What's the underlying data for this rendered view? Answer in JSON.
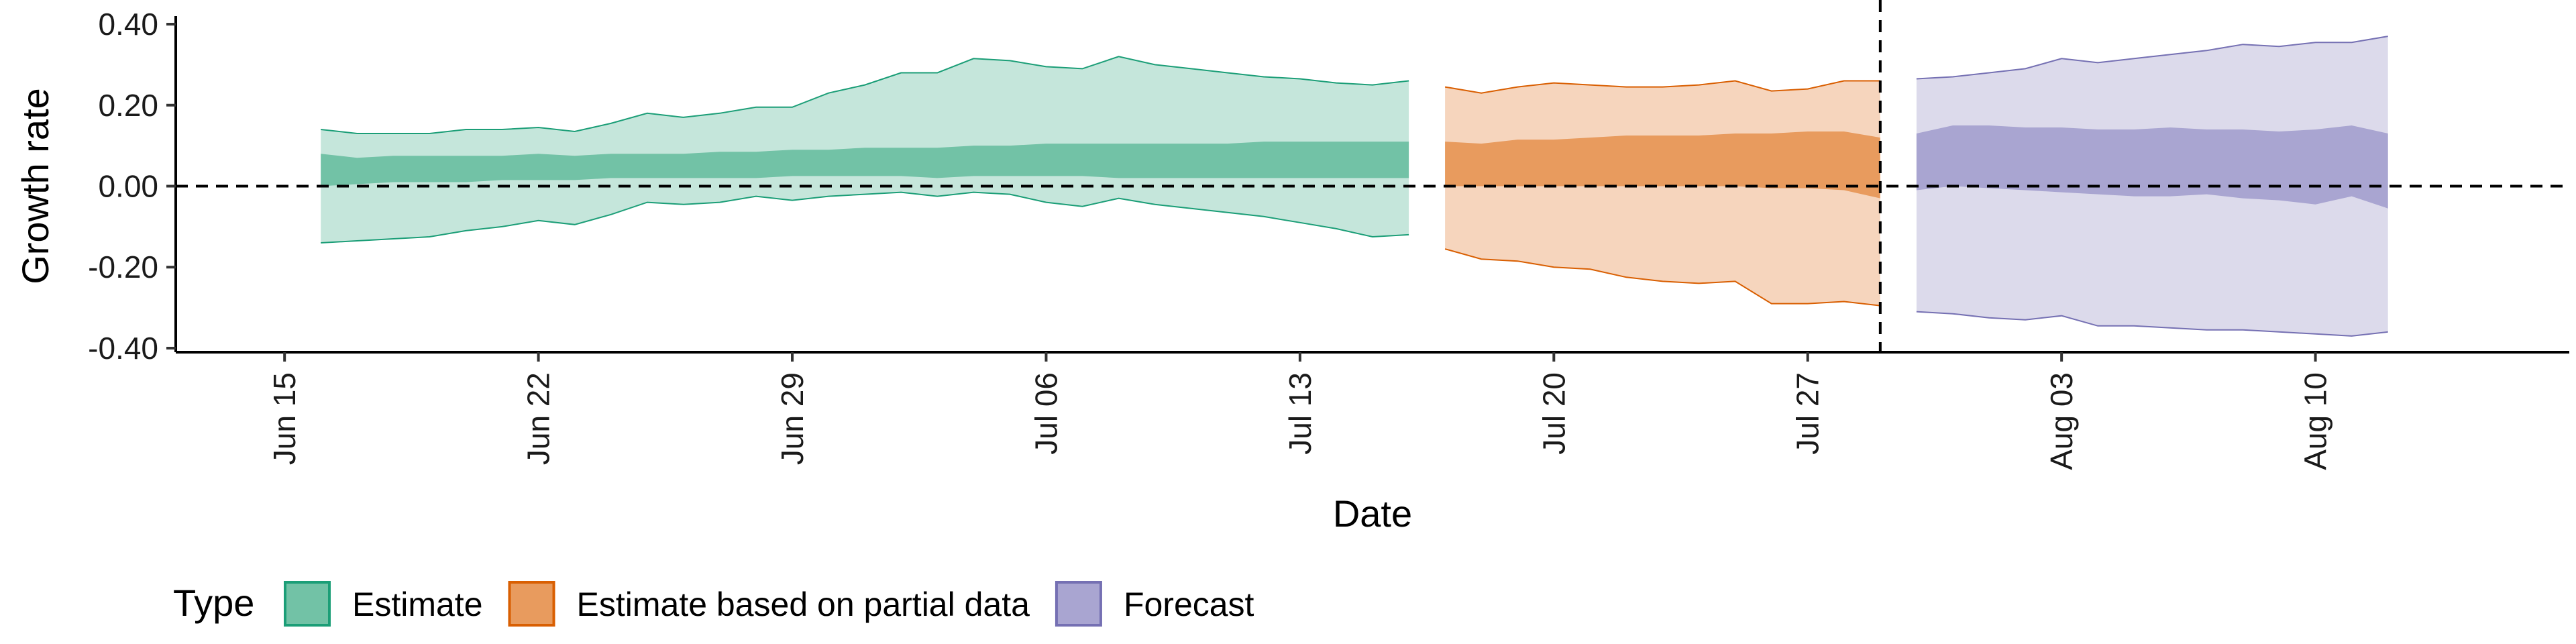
{
  "chart_data": {
    "type": "area",
    "title": "",
    "xlabel": "Date",
    "ylabel": "Growth rate",
    "x_axis": {
      "type": "date",
      "range": [
        "2020-06-12",
        "2020-08-17"
      ],
      "ticks": [
        {
          "date": "2020-06-15",
          "label": "Jun 15"
        },
        {
          "date": "2020-06-22",
          "label": "Jun 22"
        },
        {
          "date": "2020-06-29",
          "label": "Jun 29"
        },
        {
          "date": "2020-07-06",
          "label": "Jul 06"
        },
        {
          "date": "2020-07-13",
          "label": "Jul 13"
        },
        {
          "date": "2020-07-20",
          "label": "Jul 20"
        },
        {
          "date": "2020-07-27",
          "label": "Jul 27"
        },
        {
          "date": "2020-08-03",
          "label": "Aug 03"
        },
        {
          "date": "2020-08-10",
          "label": "Aug 10"
        }
      ]
    },
    "y_axis": {
      "range": [
        -0.41,
        0.41
      ],
      "ticks": [
        {
          "value": 0.4,
          "label": "0.40"
        },
        {
          "value": 0.2,
          "label": "0.20"
        },
        {
          "value": 0.0,
          "label": "0.00"
        },
        {
          "value": -0.2,
          "label": "-0.20"
        },
        {
          "value": -0.4,
          "label": "-0.40"
        }
      ]
    },
    "reference_lines": [
      {
        "orientation": "horizontal",
        "value": 0.0,
        "style": "dashed"
      },
      {
        "orientation": "vertical",
        "value": "2020-07-29",
        "style": "dashed"
      }
    ],
    "legend": {
      "title": "Type",
      "position": "bottom",
      "entries": [
        {
          "label": "Estimate",
          "fill": "#72c2a6",
          "stroke": "#1b9e77"
        },
        {
          "label": "Estimate based on partial data",
          "fill": "#e89b5e",
          "stroke": "#d95f02"
        },
        {
          "label": "Forecast",
          "fill": "#a9a5d1",
          "stroke": "#7570b3"
        }
      ]
    },
    "series": [
      {
        "name": "Estimate",
        "outer_fill": "#c5e6db",
        "inner_fill": "#72c2a6",
        "outline": "#1b9e77",
        "dates": [
          "2020-06-16",
          "2020-06-17",
          "2020-06-18",
          "2020-06-19",
          "2020-06-20",
          "2020-06-21",
          "2020-06-22",
          "2020-06-23",
          "2020-06-24",
          "2020-06-25",
          "2020-06-26",
          "2020-06-27",
          "2020-06-28",
          "2020-06-29",
          "2020-06-30",
          "2020-07-01",
          "2020-07-02",
          "2020-07-03",
          "2020-07-04",
          "2020-07-05",
          "2020-07-06",
          "2020-07-07",
          "2020-07-08",
          "2020-07-09",
          "2020-07-10",
          "2020-07-11",
          "2020-07-12",
          "2020-07-13",
          "2020-07-14",
          "2020-07-15",
          "2020-07-16"
        ],
        "outer_upper": [
          0.14,
          0.13,
          0.13,
          0.13,
          0.14,
          0.14,
          0.145,
          0.135,
          0.155,
          0.18,
          0.17,
          0.18,
          0.195,
          0.195,
          0.23,
          0.25,
          0.28,
          0.28,
          0.315,
          0.31,
          0.295,
          0.29,
          0.32,
          0.3,
          0.29,
          0.28,
          0.27,
          0.265,
          0.255,
          0.25,
          0.26
        ],
        "inner_upper": [
          0.08,
          0.07,
          0.075,
          0.075,
          0.075,
          0.075,
          0.08,
          0.075,
          0.08,
          0.08,
          0.08,
          0.085,
          0.085,
          0.09,
          0.09,
          0.095,
          0.095,
          0.095,
          0.1,
          0.1,
          0.105,
          0.105,
          0.105,
          0.105,
          0.105,
          0.105,
          0.11,
          0.11,
          0.11,
          0.11,
          0.11
        ],
        "inner_lower": [
          0.0,
          0.005,
          0.01,
          0.01,
          0.01,
          0.015,
          0.015,
          0.015,
          0.02,
          0.02,
          0.02,
          0.02,
          0.02,
          0.025,
          0.025,
          0.025,
          0.025,
          0.02,
          0.025,
          0.025,
          0.025,
          0.025,
          0.02,
          0.02,
          0.02,
          0.02,
          0.02,
          0.02,
          0.02,
          0.02,
          0.02
        ],
        "outer_lower": [
          -0.14,
          -0.135,
          -0.13,
          -0.125,
          -0.11,
          -0.1,
          -0.085,
          -0.095,
          -0.07,
          -0.04,
          -0.045,
          -0.04,
          -0.025,
          -0.035,
          -0.025,
          -0.02,
          -0.015,
          -0.025,
          -0.015,
          -0.02,
          -0.04,
          -0.05,
          -0.03,
          -0.045,
          -0.055,
          -0.065,
          -0.075,
          -0.09,
          -0.105,
          -0.125,
          -0.12
        ]
      },
      {
        "name": "Estimate based on partial data",
        "outer_fill": "#f6d5bd",
        "inner_fill": "#e89b5e",
        "outline": "#d95f02",
        "dates": [
          "2020-07-17",
          "2020-07-18",
          "2020-07-19",
          "2020-07-20",
          "2020-07-21",
          "2020-07-22",
          "2020-07-23",
          "2020-07-24",
          "2020-07-25",
          "2020-07-26",
          "2020-07-27",
          "2020-07-28",
          "2020-07-29"
        ],
        "outer_upper": [
          0.245,
          0.23,
          0.245,
          0.255,
          0.25,
          0.245,
          0.245,
          0.25,
          0.26,
          0.235,
          0.24,
          0.26,
          0.26
        ],
        "inner_upper": [
          0.11,
          0.105,
          0.115,
          0.115,
          0.12,
          0.125,
          0.125,
          0.125,
          0.13,
          0.13,
          0.135,
          0.135,
          0.12
        ],
        "inner_lower": [
          0.0,
          0.0,
          0.0,
          0.0,
          0.0,
          0.0,
          0.0,
          0.0,
          0.0,
          -0.005,
          -0.005,
          -0.01,
          -0.03
        ],
        "outer_lower": [
          -0.155,
          -0.18,
          -0.185,
          -0.2,
          -0.205,
          -0.225,
          -0.235,
          -0.24,
          -0.235,
          -0.29,
          -0.29,
          -0.285,
          -0.295
        ]
      },
      {
        "name": "Forecast",
        "outer_fill": "#dcdaeb",
        "inner_fill": "#a9a5d1",
        "outline": "#7570b3",
        "dates": [
          "2020-07-30",
          "2020-07-31",
          "2020-08-01",
          "2020-08-02",
          "2020-08-03",
          "2020-08-04",
          "2020-08-05",
          "2020-08-06",
          "2020-08-07",
          "2020-08-08",
          "2020-08-09",
          "2020-08-10",
          "2020-08-11",
          "2020-08-12"
        ],
        "outer_upper": [
          0.265,
          0.27,
          0.28,
          0.29,
          0.315,
          0.305,
          0.315,
          0.325,
          0.335,
          0.35,
          0.345,
          0.355,
          0.355,
          0.37
        ],
        "inner_upper": [
          0.13,
          0.15,
          0.15,
          0.145,
          0.145,
          0.14,
          0.14,
          0.145,
          0.14,
          0.14,
          0.135,
          0.14,
          0.15,
          0.13
        ],
        "inner_lower": [
          -0.01,
          0.0,
          -0.005,
          -0.01,
          -0.015,
          -0.02,
          -0.025,
          -0.025,
          -0.02,
          -0.03,
          -0.035,
          -0.045,
          -0.025,
          -0.055
        ],
        "outer_lower": [
          -0.31,
          -0.315,
          -0.325,
          -0.33,
          -0.32,
          -0.345,
          -0.345,
          -0.35,
          -0.355,
          -0.355,
          -0.36,
          -0.365,
          -0.37,
          -0.36
        ]
      }
    ]
  }
}
